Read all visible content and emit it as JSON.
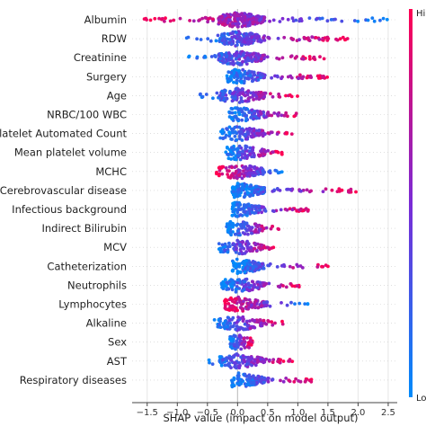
{
  "chart_data": {
    "type": "scatter",
    "subtype": "shap-beeswarm",
    "title": "",
    "xlabel": "SHAP value (impact on model output)",
    "ylabel": "",
    "xlim": [
      -1.75,
      2.65
    ],
    "xticks": [
      "−1.5",
      "−1.0",
      "−0.5",
      "0.0",
      "0.5",
      "1.0",
      "1.5",
      "2.0",
      "2.5"
    ],
    "xtick_values": [
      -1.5,
      -1.0,
      -0.5,
      0.0,
      0.5,
      1.0,
      1.5,
      2.0,
      2.5
    ],
    "grid": "vertical",
    "colorbar": {
      "label_high": "Hi",
      "label_low": "Lo",
      "high_color": "#ff0052",
      "low_color": "#008bfb",
      "mid_color": "#7b2bd6"
    },
    "features": [
      {
        "name": "Albumin",
        "min": -1.55,
        "max": 2.5,
        "low_side": "positive",
        "high_side": "negative"
      },
      {
        "name": "RDW",
        "min": -0.85,
        "max": 1.85,
        "low_side": "negative",
        "high_side": "positive"
      },
      {
        "name": "Creatinine",
        "min": -0.85,
        "max": 1.45,
        "low_side": "negative",
        "high_side": "positive"
      },
      {
        "name": "Surgery",
        "min": -0.2,
        "max": 1.5,
        "low_side": "negative",
        "high_side": "positive"
      },
      {
        "name": "Age",
        "min": -0.7,
        "max": 1.0,
        "low_side": "negative",
        "high_side": "positive"
      },
      {
        "name": "NRBC/100 WBC",
        "min": -0.15,
        "max": 1.05,
        "low_side": "negative",
        "high_side": "positive"
      },
      {
        "name": "Platelet Automated Count",
        "min": -0.3,
        "max": 0.95,
        "low_side": "negative",
        "high_side": "positive"
      },
      {
        "name": "Mean platelet volume",
        "min": -0.2,
        "max": 0.75,
        "low_side": "negative",
        "high_side": "positive"
      },
      {
        "name": "MCHC",
        "min": -0.35,
        "max": 0.75,
        "low_side": "positive",
        "high_side": "negative"
      },
      {
        "name": "Cerebrovascular disease",
        "min": -0.1,
        "max": 2.05,
        "low_side": "negative",
        "high_side": "positive"
      },
      {
        "name": "Infectious background",
        "min": -0.1,
        "max": 1.2,
        "low_side": "negative",
        "high_side": "positive"
      },
      {
        "name": "Indirect Bilirubin",
        "min": -0.2,
        "max": 0.7,
        "low_side": "negative",
        "high_side": "positive"
      },
      {
        "name": "MCV",
        "min": -0.35,
        "max": 0.6,
        "low_side": "negative",
        "high_side": "positive"
      },
      {
        "name": "Catheterization",
        "min": -0.1,
        "max": 1.5,
        "low_side": "negative",
        "high_side": "positive"
      },
      {
        "name": "Neutrophils",
        "min": -0.3,
        "max": 1.05,
        "low_side": "negative",
        "high_side": "positive"
      },
      {
        "name": "Lymphocytes",
        "min": -0.25,
        "max": 1.2,
        "low_side": "positive",
        "high_side": "negative"
      },
      {
        "name": "Alkaline",
        "min": -0.45,
        "max": 0.8,
        "low_side": "negative",
        "high_side": "positive"
      },
      {
        "name": "Sex",
        "min": -0.15,
        "max": 0.25,
        "low_side": "negative",
        "high_side": "positive"
      },
      {
        "name": "AST",
        "min": -0.5,
        "max": 1.0,
        "low_side": "negative",
        "high_side": "positive"
      },
      {
        "name": "Respiratory diseases",
        "min": -0.1,
        "max": 1.3,
        "low_side": "negative",
        "high_side": "positive"
      }
    ]
  }
}
